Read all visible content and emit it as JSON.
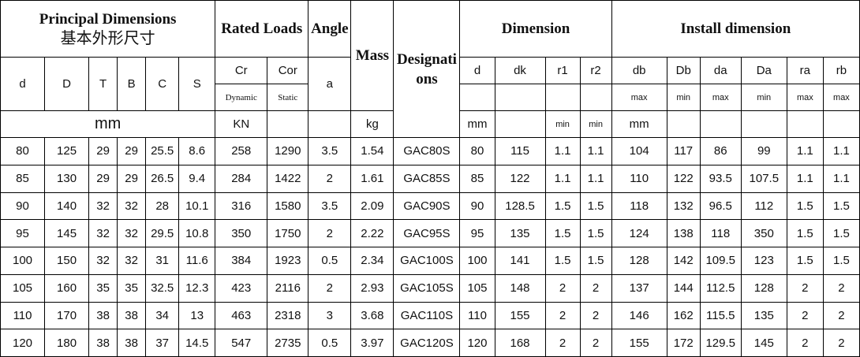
{
  "header": {
    "principal_dimensions": "Principal Dimensions",
    "principal_dimensions_cn": "基本外形尺寸",
    "rated_loads": "Rated Loads",
    "angle": "Angle",
    "mass": "Mass",
    "designations": "Designations",
    "dimension": "Dimension",
    "install_dimension": "Install dimension"
  },
  "columns": [
    "d",
    "D",
    "T",
    "B",
    "C",
    "S",
    "Cr",
    "Cor",
    "a",
    "d",
    "dk",
    "r1",
    "r2",
    "db",
    "Db",
    "da",
    "Da",
    "ra",
    "rb"
  ],
  "sub_labels": {
    "cr": "Dynamic",
    "cor": "Static",
    "db": "max",
    "Db": "min",
    "da": "max",
    "Da": "min",
    "ra": "max",
    "rb": "max"
  },
  "units": {
    "principal": "mm",
    "cr": "KN",
    "mass": "kg",
    "d": "mm",
    "r1": "min",
    "r2": "min",
    "db": "mm"
  },
  "table": {
    "rows": [
      [
        80,
        125,
        29,
        29,
        25.5,
        8.6,
        258,
        1290,
        3.5,
        1.54,
        "GAC80S",
        80,
        115,
        1.1,
        1.1,
        104,
        117,
        86,
        99,
        1.1,
        1.1
      ],
      [
        85,
        130,
        29,
        29,
        26.5,
        9.4,
        284,
        1422,
        2,
        1.61,
        "GAC85S",
        85,
        122,
        1.1,
        1.1,
        110,
        122,
        93.5,
        107.5,
        1.1,
        1.1
      ],
      [
        90,
        140,
        32,
        32,
        28,
        10.1,
        316,
        1580,
        3.5,
        2.09,
        "GAC90S",
        90,
        128.5,
        1.5,
        1.5,
        118,
        132,
        96.5,
        112,
        1.5,
        1.5
      ],
      [
        95,
        145,
        32,
        32,
        29.5,
        10.8,
        350,
        1750,
        2,
        2.22,
        "GAC95S",
        95,
        135,
        1.5,
        1.5,
        124,
        138,
        118,
        350,
        1.5,
        1.5
      ],
      [
        100,
        150,
        32,
        32,
        31,
        11.6,
        384,
        1923,
        0.5,
        2.34,
        "GAC100S",
        100,
        141,
        1.5,
        1.5,
        128,
        142,
        109.5,
        123,
        1.5,
        1.5
      ],
      [
        105,
        160,
        35,
        35,
        32.5,
        12.3,
        423,
        2116,
        2,
        2.93,
        "GAC105S",
        105,
        148,
        2,
        2,
        137,
        144,
        112.5,
        128,
        2,
        2
      ],
      [
        110,
        170,
        38,
        38,
        34,
        13,
        463,
        2318,
        3,
        3.68,
        "GAC110S",
        110,
        155,
        2,
        2,
        146,
        162,
        115.5,
        135,
        2,
        2
      ],
      [
        120,
        180,
        38,
        38,
        37,
        14.5,
        547,
        2735,
        0.5,
        3.97,
        "GAC120S",
        120,
        168,
        2,
        2,
        155,
        172,
        129.5,
        145,
        2,
        2
      ]
    ]
  }
}
